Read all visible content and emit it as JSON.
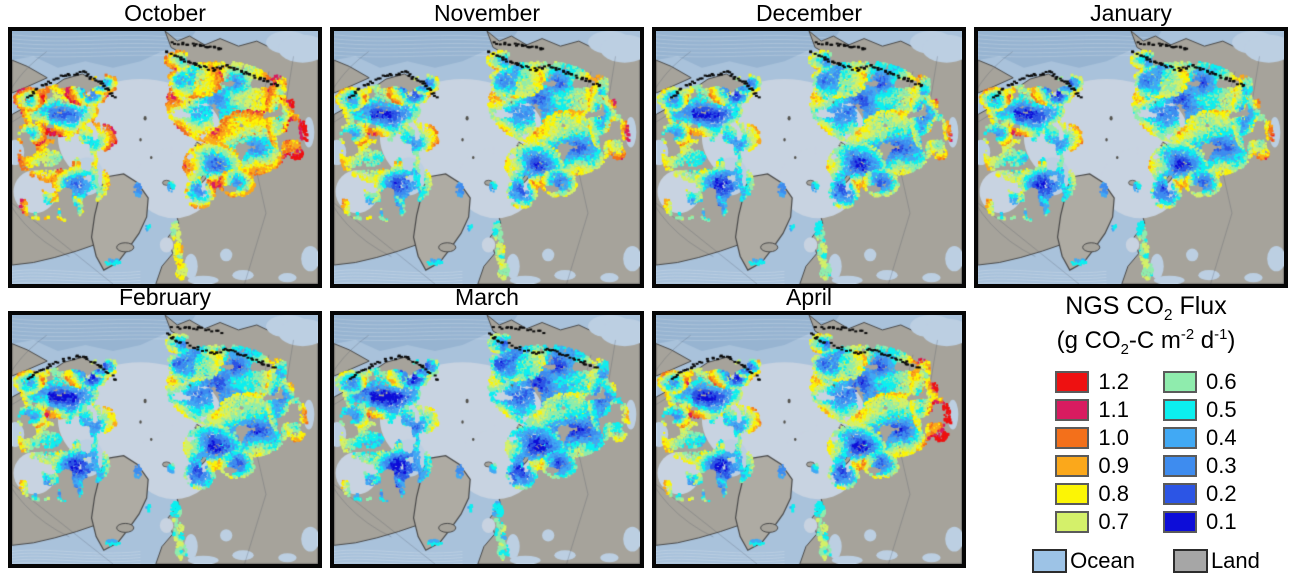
{
  "panels": [
    {
      "label": "October",
      "flux_pattern": {
        "interior": 0.41,
        "fringe": 0.52,
        "east_coast": 0.5,
        "west_coast": 0.26
      }
    },
    {
      "label": "November",
      "flux_pattern": {
        "interior": 0.33,
        "fringe": 0.44,
        "east_coast": 0.3,
        "west_coast": 0.22
      }
    },
    {
      "label": "December",
      "flux_pattern": {
        "interior": 0.3,
        "fringe": 0.42,
        "east_coast": 0.24,
        "west_coast": 0.2
      }
    },
    {
      "label": "January",
      "flux_pattern": {
        "interior": 0.3,
        "fringe": 0.43,
        "east_coast": 0.26,
        "west_coast": 0.3
      }
    },
    {
      "label": "February",
      "flux_pattern": {
        "interior": 0.29,
        "fringe": 0.41,
        "east_coast": 0.22,
        "west_coast": 0.3
      }
    },
    {
      "label": "March",
      "flux_pattern": {
        "interior": 0.26,
        "fringe": 0.37,
        "east_coast": 0.18,
        "west_coast": 0.24
      }
    },
    {
      "label": "April",
      "flux_pattern": {
        "interior": 0.28,
        "fringe": 0.47,
        "east_coast": 0.85,
        "west_coast": 0.3
      }
    }
  ],
  "legend": {
    "title_parts": {
      "t1": "NGS CO",
      "sub": "2",
      "t2": " Flux"
    },
    "units_parts": {
      "t1": "(g CO",
      "sub1": "2",
      "t2": "-C m",
      "sup1": "-2",
      "t3": " d",
      "sup2": "-1",
      "t4": ")"
    },
    "left": [
      {
        "value": "1.2",
        "color": "#ee1111"
      },
      {
        "value": "1.1",
        "color": "#d81b60"
      },
      {
        "value": "1.0",
        "color": "#f3701b"
      },
      {
        "value": "0.9",
        "color": "#fba81b"
      },
      {
        "value": "0.8",
        "color": "#fcf505"
      },
      {
        "value": "0.7",
        "color": "#d4f06a"
      }
    ],
    "right": [
      {
        "value": "0.6",
        "color": "#8fecad"
      },
      {
        "value": "0.5",
        "color": "#0cf0f0"
      },
      {
        "value": "0.4",
        "color": "#41a9f4"
      },
      {
        "value": "0.3",
        "color": "#3e8cef"
      },
      {
        "value": "0.2",
        "color": "#2c55e5"
      },
      {
        "value": "0.1",
        "color": "#0d0dd8"
      }
    ],
    "surface": [
      {
        "label": "Ocean",
        "color": "#9dc3e6"
      },
      {
        "label": "Land",
        "color": "#a6a6a6"
      }
    ]
  },
  "map_colors": {
    "ocean": "#a9c2db",
    "deep_ocean": "#97b4d1",
    "basin": "#c8d3e1",
    "bay": "#bccfe2",
    "land": "#a6a39b",
    "greenland": "#aeaba3",
    "coastline": "#4a4a4a",
    "data_coast": "#0b0b0b"
  }
}
